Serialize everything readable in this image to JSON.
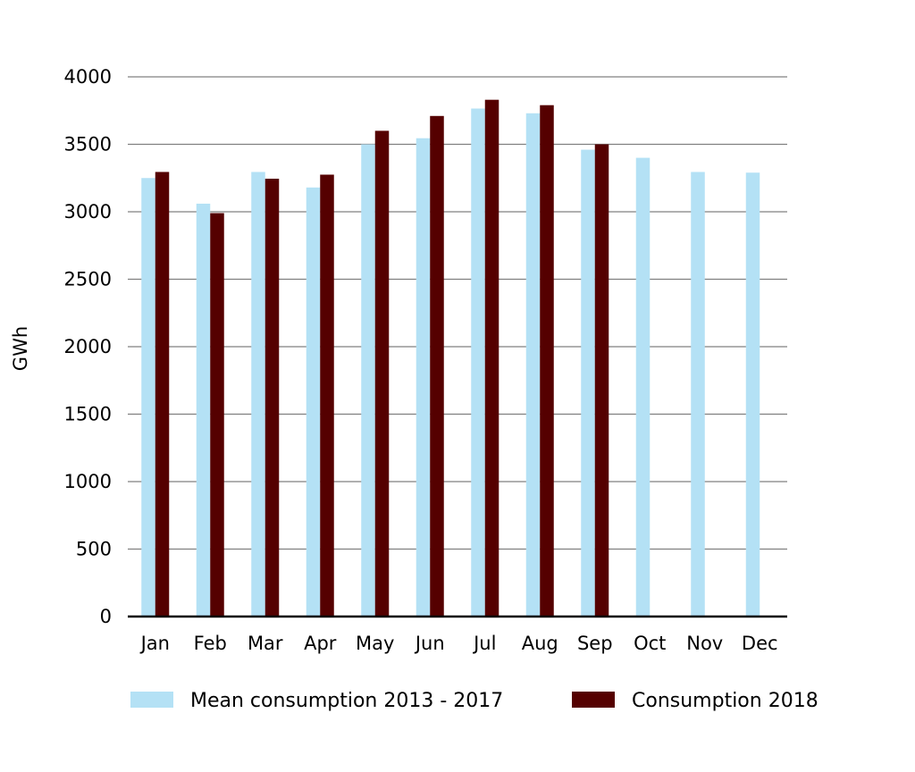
{
  "chart_data": {
    "type": "bar",
    "title": "",
    "xlabel": "",
    "ylabel": "GWh",
    "ylim": [
      0,
      4000
    ],
    "yticks": [
      0,
      500,
      1000,
      1500,
      2000,
      2500,
      3000,
      3500,
      4000
    ],
    "grid": true,
    "legend_position": "bottom",
    "categories": [
      "Jan",
      "Feb",
      "Mar",
      "Apr",
      "May",
      "Jun",
      "Jul",
      "Aug",
      "Sep",
      "Oct",
      "Nov",
      "Dec"
    ],
    "series": [
      {
        "name": "Mean consumption 2013 - 2017",
        "color": "#b4e1f5",
        "values": [
          3250,
          3060,
          3295,
          3180,
          3500,
          3545,
          3765,
          3730,
          3460,
          3400,
          3295,
          3290
        ]
      },
      {
        "name": "Consumption 2018",
        "color": "#550000",
        "values": [
          3295,
          2990,
          3245,
          3275,
          3600,
          3710,
          3830,
          3790,
          3500,
          null,
          null,
          null
        ]
      }
    ]
  }
}
